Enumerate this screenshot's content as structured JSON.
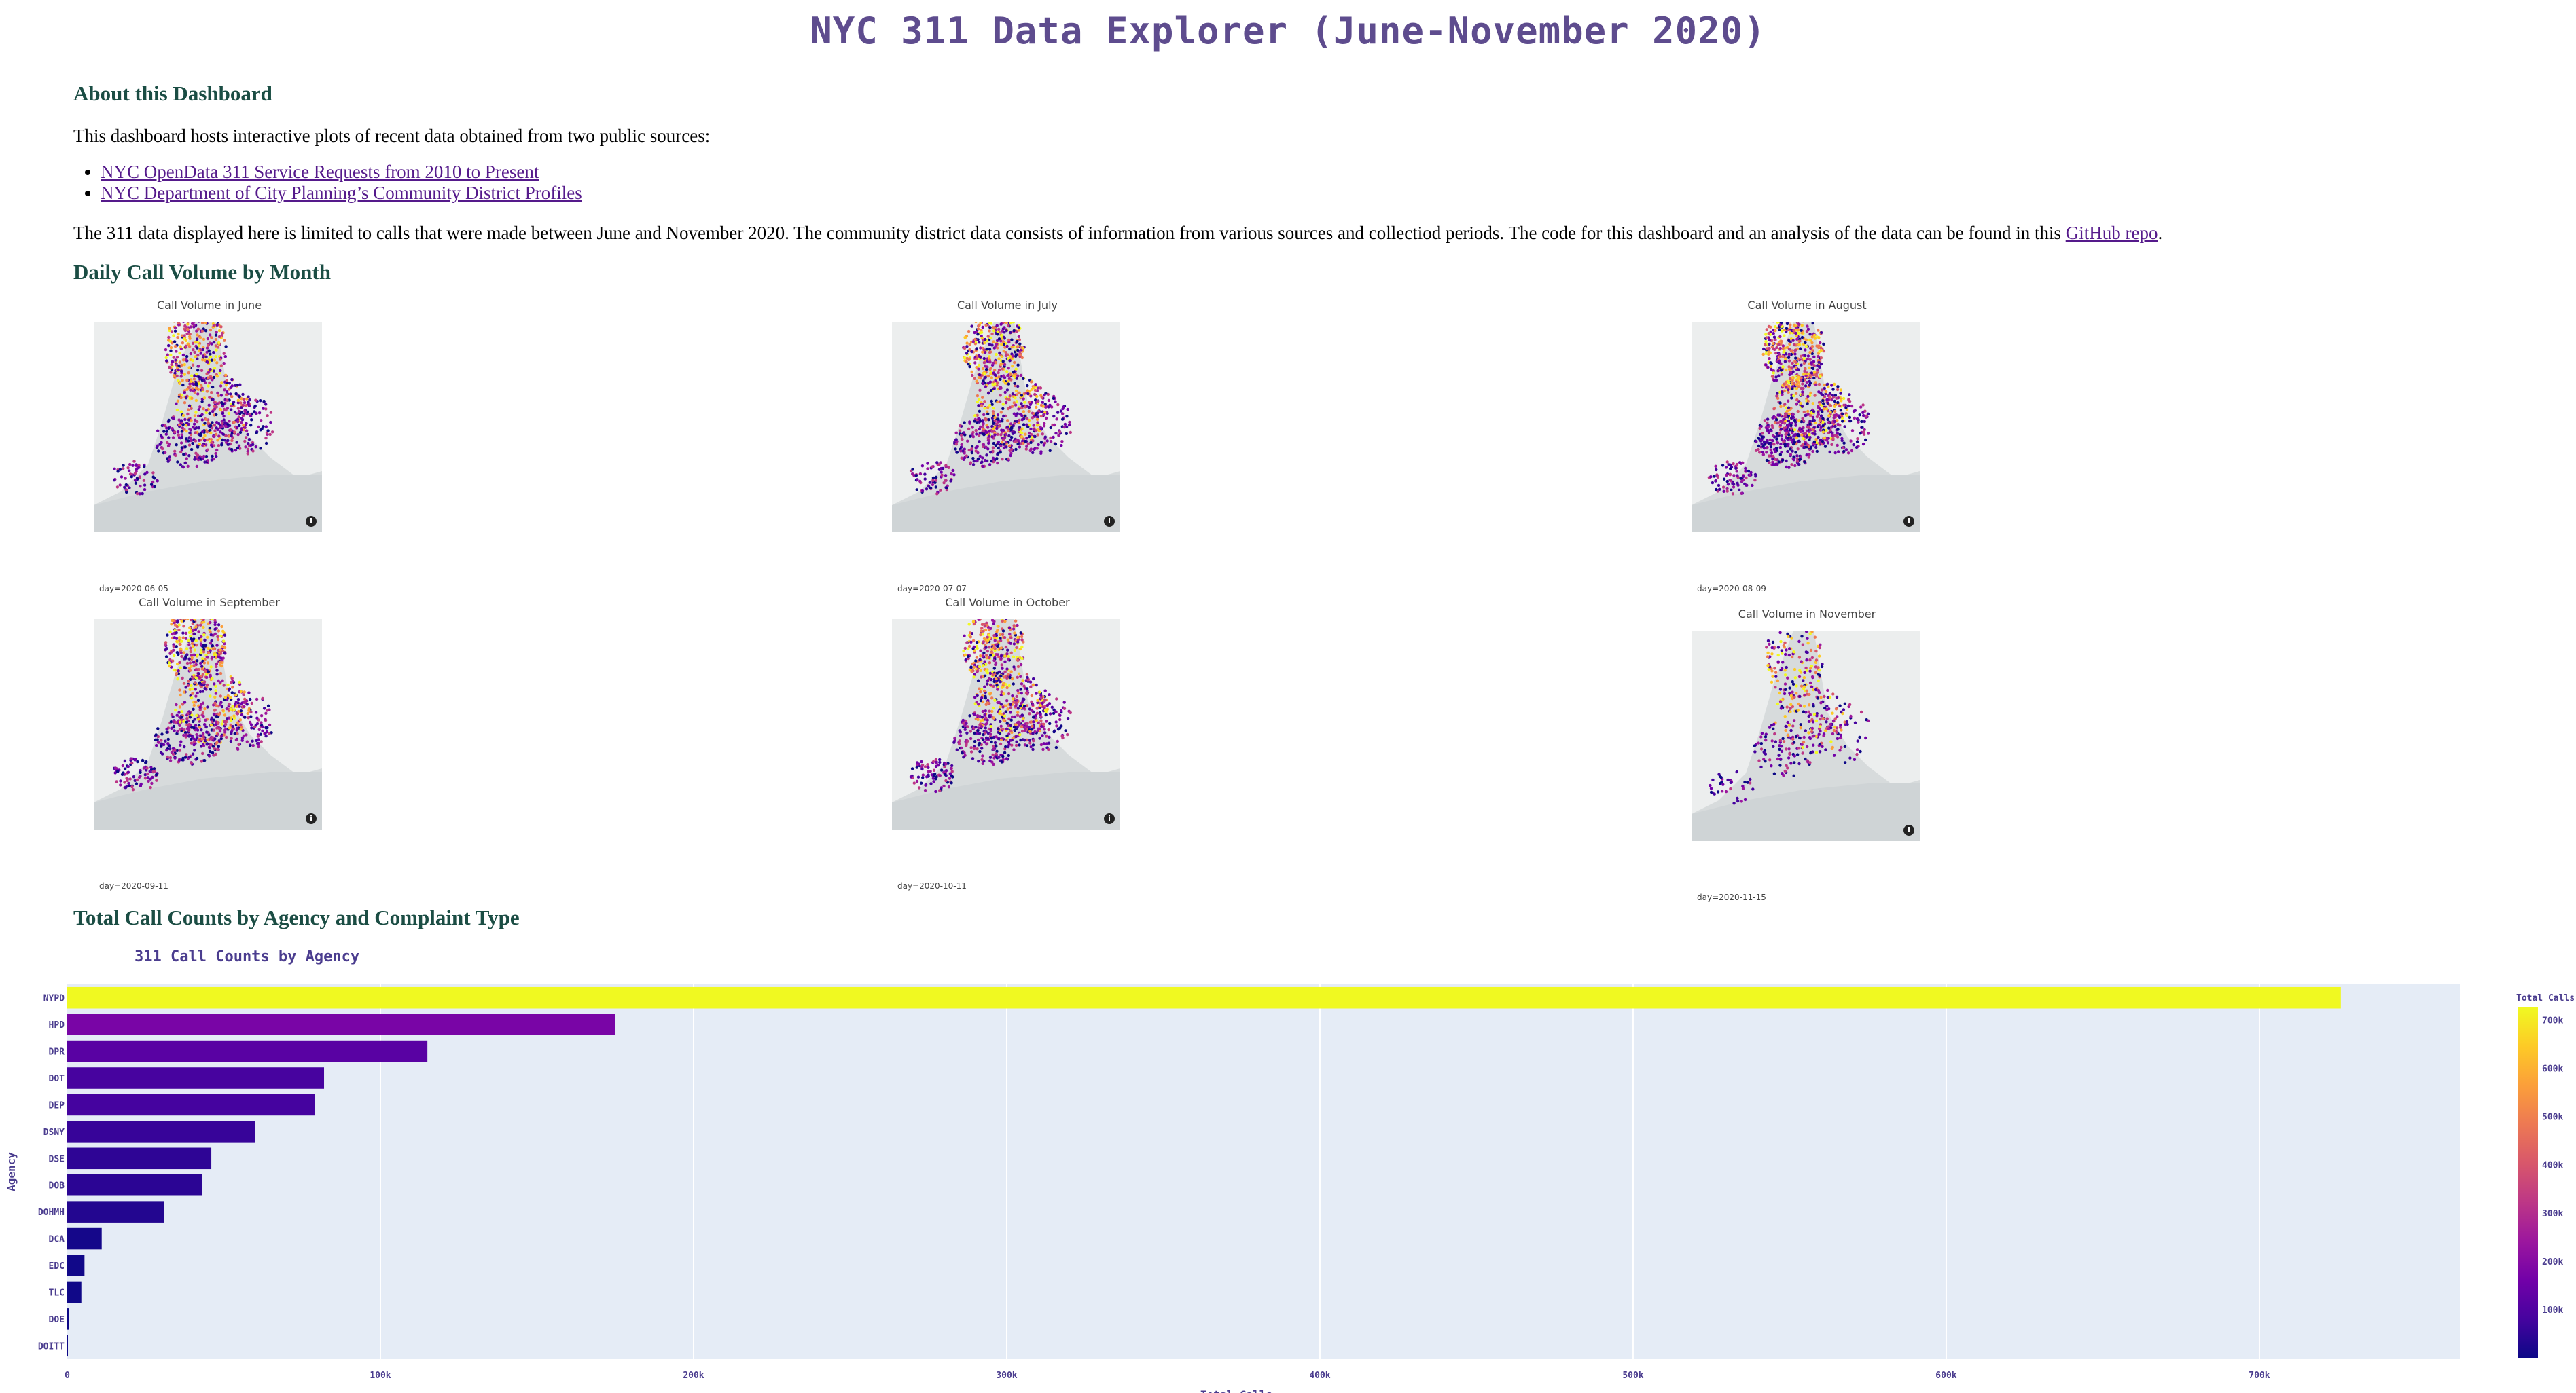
{
  "title": "NYC 311 Data Explorer (June-November 2020)",
  "about": {
    "heading": "About this Dashboard",
    "intro": "This dashboard hosts interactive plots of recent data obtained from two public sources:",
    "sources": [
      "NYC OpenData 311 Service Requests from 2010 to Present",
      "NYC Department of City Planning’s Community District Profiles"
    ],
    "body": "The 311 data displayed here is limited to calls that were made between June and November 2020. The community district data consists of information from various sources and collectiod periods. The code for this dashboard and an analysis of the data can be found in this ",
    "repo_link": "GitHub repo",
    "trailing": "."
  },
  "daily": {
    "heading": "Daily Call Volume by Month",
    "maps": [
      {
        "title": "Call Volume in June",
        "day": "day=2020-06-05"
      },
      {
        "title": "Call Volume in July",
        "day": "day=2020-07-07"
      },
      {
        "title": "Call Volume in August",
        "day": "day=2020-08-09"
      },
      {
        "title": "Call Volume in September",
        "day": "day=2020-09-11"
      },
      {
        "title": "Call Volume in October",
        "day": "day=2020-10-11"
      },
      {
        "title": "Call Volume in November",
        "day": "day=2020-11-15"
      }
    ],
    "info_glyph": "i"
  },
  "totals": {
    "heading": "Total Call Counts by Agency and Complaint Type"
  },
  "chart_data": {
    "type": "bar",
    "orientation": "horizontal",
    "title": "311 Call Counts by Agency",
    "xlabel": "Total Calls",
    "ylabel": "Agency",
    "categories": [
      "NYPD",
      "HPD",
      "DPR",
      "DOT",
      "DEP",
      "DSNY",
      "DSE",
      "DOB",
      "DOHMH",
      "DCA",
      "EDC",
      "TLC",
      "DOE",
      "DOITT"
    ],
    "values": [
      726000,
      175000,
      115000,
      82000,
      79000,
      60000,
      46000,
      43000,
      31000,
      11000,
      5500,
      4500,
      500,
      100
    ],
    "xlim": [
      0,
      764000
    ],
    "xticks": [
      {
        "value": 0,
        "label": "0"
      },
      {
        "value": 100000,
        "label": "100k"
      },
      {
        "value": 200000,
        "label": "200k"
      },
      {
        "value": 300000,
        "label": "300k"
      },
      {
        "value": 400000,
        "label": "400k"
      },
      {
        "value": 500000,
        "label": "500k"
      },
      {
        "value": 600000,
        "label": "600k"
      },
      {
        "value": 700000,
        "label": "700k"
      }
    ],
    "colorbar": {
      "title": "Total Calls",
      "ticks": [
        {
          "value": 100000,
          "label": "100k"
        },
        {
          "value": 200000,
          "label": "200k"
        },
        {
          "value": 300000,
          "label": "300k"
        },
        {
          "value": 400000,
          "label": "400k"
        },
        {
          "value": 500000,
          "label": "500k"
        },
        {
          "value": 600000,
          "label": "600k"
        },
        {
          "value": 700000,
          "label": "700k"
        }
      ],
      "range": [
        0,
        726000
      ],
      "colors": [
        "#0d0887",
        "#46039f",
        "#7201a8",
        "#9c179e",
        "#bd3786",
        "#d8576b",
        "#ed7953",
        "#fb9f3a",
        "#fdca26",
        "#f0f921"
      ]
    },
    "plot_background": "#e5ecf6",
    "grid": true
  }
}
